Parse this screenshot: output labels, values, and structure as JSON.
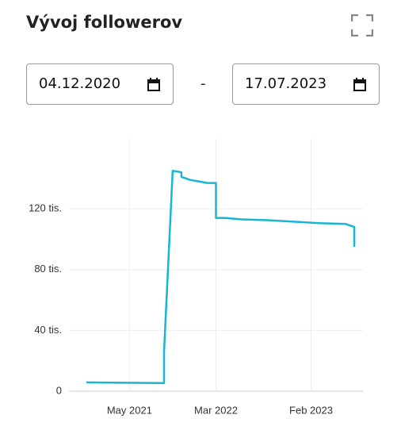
{
  "header": {
    "title": "Vývoj followerov"
  },
  "date_range": {
    "from": "04.12.2020",
    "separator": "-",
    "to": "17.07.2023"
  },
  "chart_data": {
    "type": "line",
    "x": [
      "2020-12",
      "2021-03",
      "2021-06",
      "2021-09",
      "2021-09",
      "2021-10",
      "2021-11",
      "2021-11",
      "2021-12",
      "2022-01",
      "2022-02",
      "2022-03",
      "2022-03",
      "2022-03",
      "2022-04",
      "2022-06",
      "2022-09",
      "2022-12",
      "2023-03",
      "2023-06",
      "2023-07",
      "2023-07"
    ],
    "values": [
      5.8,
      5.6,
      5.5,
      5.3,
      26,
      145,
      144,
      141,
      139,
      138,
      137,
      137,
      129,
      114,
      114,
      113,
      112.5,
      111.5,
      110.5,
      110,
      108,
      95
    ],
    "color": "#17b6d2",
    "xlim": [
      "2020-10",
      "2023-08"
    ],
    "xticks": [
      {
        "value": "2021-05",
        "label": "May 2021"
      },
      {
        "value": "2022-03",
        "label": "Mar 2022"
      },
      {
        "value": "2023-02",
        "label": "Feb 2023"
      }
    ],
    "ylim": [
      0,
      166
    ],
    "yticks": [
      0,
      {
        "value": 40,
        "label": "40 tis."
      },
      {
        "value": 80,
        "label": "80 tis."
      },
      {
        "value": 120,
        "label": "120 tis."
      }
    ],
    "grid": true
  }
}
